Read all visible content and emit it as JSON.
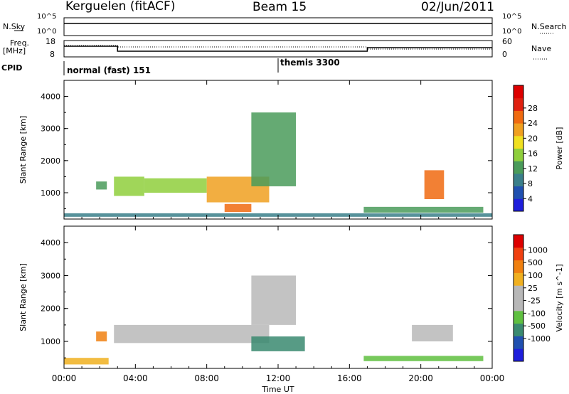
{
  "header": {
    "station": "Kerguelen (fitACF)",
    "beam": "Beam 15",
    "date": "02/Jun/2011"
  },
  "summary": {
    "nsky_label": "N.Sky",
    "nsearch_label": "N.Search",
    "freq_label_1": "Freq.",
    "freq_label_2": "[MHz]",
    "nave_label": "Nave",
    "cpid_label": "CPID",
    "nsky_ticks": [
      "10^5",
      "10^0"
    ],
    "nsearch_ticks": [
      "10^5",
      "10^0"
    ],
    "freq_ticks": [
      "18",
      "8"
    ],
    "nave_ticks": [
      "60",
      "0"
    ],
    "cpid_modes": [
      "normal (fast) 151",
      "themis 3300"
    ]
  },
  "colors": {
    "power": [
      "#1f1fdc",
      "#2050b0",
      "#3a7f8a",
      "#4a9b5a",
      "#8fcf3c",
      "#f0e020",
      "#f0a020",
      "#f06a10",
      "#e02010",
      "#dd0000"
    ],
    "velocity": [
      "#1f1fdc",
      "#2050b0",
      "#3a8a70",
      "#5fc040",
      "#b8b8b8",
      "#b8b8b8",
      "#f0b020",
      "#f08010",
      "#f04010",
      "#dd0000"
    ]
  },
  "chart_data": {
    "type": "heatmap",
    "x_label": "Time UT",
    "x_range": [
      "00:00",
      "24:00"
    ],
    "x_ticks": [
      "00:00",
      "04:00",
      "08:00",
      "12:00",
      "16:00",
      "20:00",
      "00:00"
    ],
    "y_label": "Slant Range [km]",
    "y_range_km": [
      180,
      4500
    ],
    "y_ticks": [
      "1000",
      "2000",
      "3000",
      "4000"
    ],
    "panels": [
      {
        "name": "Power",
        "colorbar_label": "Power [dB]",
        "colorbar_ticks": [
          "4",
          "8",
          "12",
          "16",
          "20",
          "24",
          "28"
        ],
        "regions": [
          {
            "t0": 1.8,
            "t1": 2.4,
            "r0": 1100,
            "r1": 1350,
            "level": 0.35
          },
          {
            "t0": 2.8,
            "t1": 4.5,
            "r0": 900,
            "r1": 1500,
            "level": 0.45
          },
          {
            "t0": 4.5,
            "t1": 8.0,
            "r0": 1000,
            "r1": 1450,
            "level": 0.4
          },
          {
            "t0": 8.0,
            "t1": 11.5,
            "r0": 700,
            "r1": 1500,
            "level": 0.7
          },
          {
            "t0": 9.0,
            "t1": 10.5,
            "r0": 400,
            "r1": 650,
            "level": 0.8
          },
          {
            "t0": 10.5,
            "t1": 13.0,
            "r0": 1200,
            "r1": 3500,
            "level": 0.35
          },
          {
            "t0": 20.2,
            "t1": 21.3,
            "r0": 800,
            "r1": 1700,
            "level": 0.8
          },
          {
            "t0": 16.8,
            "t1": 23.5,
            "r0": 380,
            "r1": 560,
            "level": 0.3
          },
          {
            "t0": 0.0,
            "t1": 24.0,
            "r0": 250,
            "r1": 360,
            "level": 0.2
          }
        ]
      },
      {
        "name": "Velocity",
        "colorbar_label": "Velocity [m s^-1]",
        "colorbar_ticks": [
          "1000",
          "500",
          "100",
          "25",
          "-25",
          "-100",
          "-500",
          "-1000"
        ],
        "regions": [
          {
            "t0": 1.8,
            "t1": 2.4,
            "r0": 1000,
            "r1": 1300,
            "level": 0.8
          },
          {
            "t0": 2.8,
            "t1": 11.5,
            "r0": 950,
            "r1": 1500,
            "level": 0.5
          },
          {
            "t0": 10.5,
            "t1": 13.5,
            "r0": 700,
            "r1": 1150,
            "level": 0.25
          },
          {
            "t0": 10.5,
            "t1": 13.0,
            "r0": 1500,
            "r1": 3000,
            "level": 0.5
          },
          {
            "t0": 16.8,
            "t1": 23.5,
            "r0": 400,
            "r1": 560,
            "level": 0.3
          },
          {
            "t0": 19.5,
            "t1": 21.8,
            "r0": 1000,
            "r1": 1500,
            "level": 0.5
          },
          {
            "t0": 0.0,
            "t1": 2.5,
            "r0": 300,
            "r1": 500,
            "level": 0.7
          }
        ]
      }
    ]
  }
}
